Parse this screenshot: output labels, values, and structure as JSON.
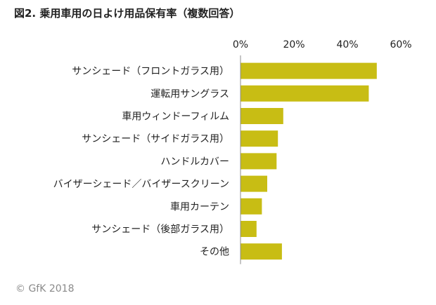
{
  "title": "図2. 乗用車用の日よけ用品保有率（複数回答）",
  "copyright": "© GfK 2018",
  "colors": {
    "bar": "#C8BD14",
    "axis": "#8c8c8c",
    "grid": "#d9d9d9",
    "text": "#222222"
  },
  "chart_data": {
    "type": "bar",
    "orientation": "horizontal",
    "title": "図2. 乗用車用の日よけ用品保有率（複数回答）",
    "categories": [
      "サンシェード（フロントガラス用）",
      "運転用サングラス",
      "車用ウィンドーフィルム",
      "サンシェード（サイドガラス用）",
      "ハンドルカバー",
      "バイザーシェード／バイザースクリーン",
      "車用カーテン",
      "サンシェード（後部ガラス用）",
      "その他"
    ],
    "values": [
      51,
      48,
      16,
      14,
      13.5,
      10,
      8,
      6,
      15.5
    ],
    "x_ticks": [
      "0%",
      "20%",
      "40%",
      "60%"
    ],
    "xlim": [
      0,
      60
    ],
    "grid": false,
    "legend": "none"
  }
}
